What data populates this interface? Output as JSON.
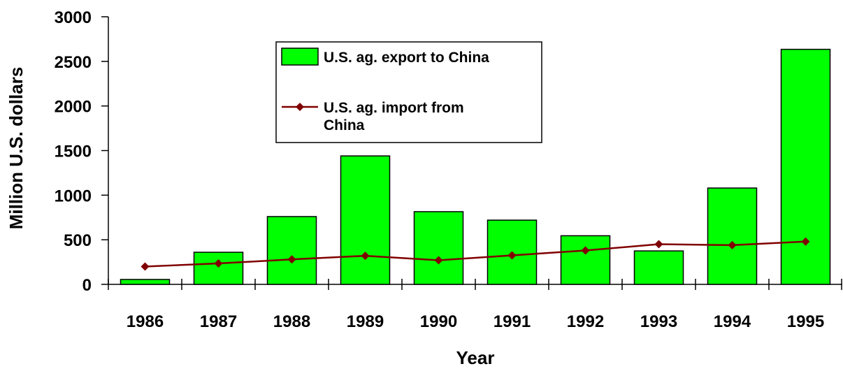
{
  "chart_data": {
    "type": "bar",
    "title": "",
    "xlabel": "Year",
    "ylabel": "Million U.S. dollars",
    "categories": [
      "1986",
      "1987",
      "1988",
      "1989",
      "1990",
      "1991",
      "1992",
      "1993",
      "1994",
      "1995"
    ],
    "ylim": [
      0,
      3000
    ],
    "yticks": [
      0,
      500,
      1000,
      1500,
      2000,
      2500,
      3000
    ],
    "grid": false,
    "legend_position": "top-center",
    "series": [
      {
        "name": "U.S. ag. export to China",
        "kind": "bar",
        "color": "#00ff00",
        "values": [
          55,
          360,
          760,
          1440,
          815,
          720,
          545,
          375,
          1080,
          2635
        ]
      },
      {
        "name": "U.S. ag. import from China",
        "kind": "line",
        "marker": "diamond",
        "color": "#800000",
        "values": [
          200,
          235,
          280,
          320,
          270,
          325,
          380,
          450,
          440,
          480
        ]
      }
    ]
  }
}
